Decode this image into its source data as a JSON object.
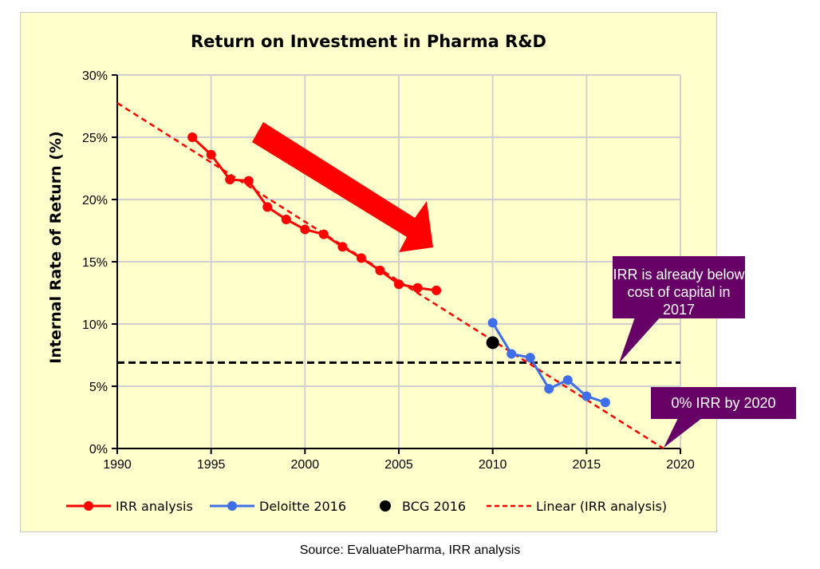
{
  "chart_data": {
    "type": "line",
    "title": "Return on Investment in Pharma R&D",
    "xlabel": "",
    "ylabel": "Internal Rate of Return (%)",
    "xlim": [
      1990,
      2020
    ],
    "ylim": [
      0,
      30
    ],
    "xticks": [
      "1990",
      "1995",
      "2000",
      "2005",
      "2010",
      "2015",
      "2020"
    ],
    "yticks": [
      "0%",
      "5%",
      "10%",
      "15%",
      "20%",
      "25%",
      "30%"
    ],
    "grid": true,
    "legend_position": "bottom",
    "series": [
      {
        "name": "IRR analysis",
        "color": "#FF0000",
        "x": [
          1994,
          1995,
          1996,
          1997,
          1998,
          1999,
          2000,
          2001,
          2002,
          2003,
          2004,
          2005,
          2006,
          2007
        ],
        "y": [
          25.0,
          23.6,
          21.6,
          21.5,
          19.4,
          18.4,
          17.6,
          17.2,
          16.2,
          15.3,
          14.3,
          13.2,
          12.9,
          12.7
        ]
      },
      {
        "name": "Deloitte 2016",
        "color": "#3F6FE8",
        "x": [
          2010,
          2011,
          2012,
          2013,
          2014,
          2015,
          2016
        ],
        "y": [
          10.1,
          7.6,
          7.3,
          4.8,
          5.5,
          4.2,
          3.7
        ]
      },
      {
        "name": "BCG 2016",
        "color": "#000000",
        "x": [
          2010
        ],
        "y": [
          8.5
        ]
      },
      {
        "name": "Linear (IRR analysis)",
        "color": "#FF0000",
        "style": "dashed",
        "x": [
          1990,
          2019.1
        ],
        "y": [
          27.75,
          0
        ]
      }
    ],
    "reference_line": {
      "y": 6.9,
      "color": "#000000",
      "style": "dashed"
    },
    "annotations": [
      "IRR is already below cost of capital in 2017",
      "0% IRR by 2020"
    ],
    "annotation_color": "#660066"
  },
  "source": "Source: EvaluatePharma,  IRR analysis"
}
